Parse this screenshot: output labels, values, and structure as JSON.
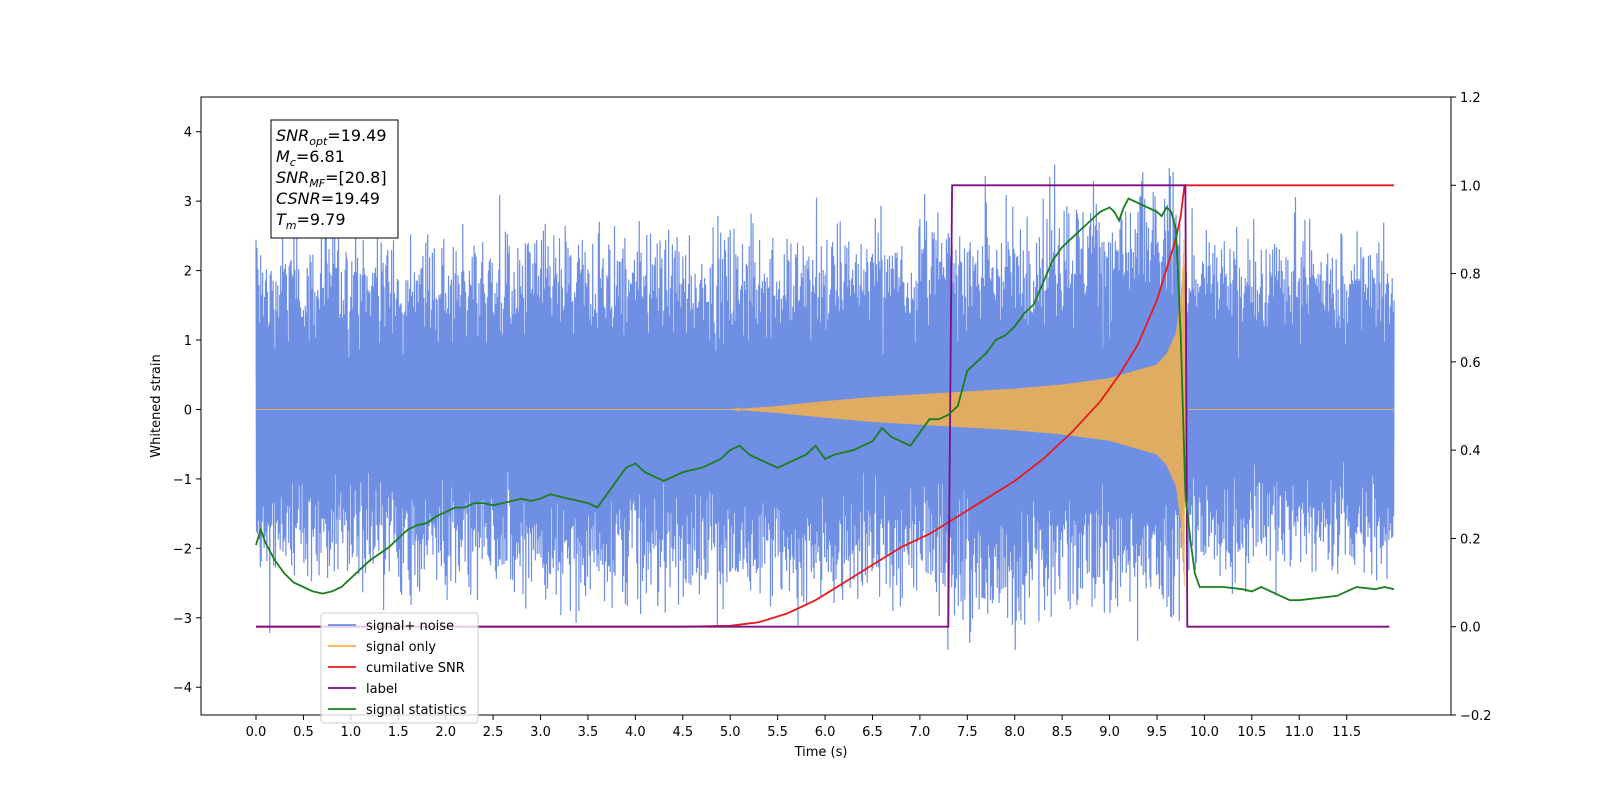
{
  "chart_data": {
    "type": "line",
    "xlabel": "Time (s)",
    "ylabel": "Whitened strain",
    "xlim": [
      -0.58,
      12.6
    ],
    "ylim": [
      -4.4,
      4.5
    ],
    "ylim_right": [
      -0.2,
      1.2
    ],
    "x_ticks": [
      "0.0",
      "0.5",
      "1.0",
      "1.5",
      "2.0",
      "2.5",
      "3.0",
      "3.5",
      "4.0",
      "4.5",
      "5.0",
      "5.5",
      "6.0",
      "6.5",
      "7.0",
      "7.5",
      "8.0",
      "8.5",
      "9.0",
      "9.5",
      "10.0",
      "10.5",
      "11.0",
      "11.5"
    ],
    "y_ticks": [
      "4",
      "3",
      "2",
      "1",
      "0",
      "−1",
      "−2",
      "−3",
      "−4"
    ],
    "y_right_ticks": [
      "1.2",
      "1.0",
      "0.8",
      "0.6",
      "0.4",
      "0.2",
      "0.0",
      "−0.2"
    ],
    "grid": false,
    "legend_position": "lower-left",
    "annotation": {
      "lines": [
        {
          "main": "SNR",
          "sub": "opt",
          "value": "=19.49"
        },
        {
          "main": "M",
          "sub": "c",
          "value": "=6.81"
        },
        {
          "main": "SNR",
          "sub": "MF",
          "value": "=[20.8]"
        },
        {
          "main": "CSNR",
          "sub": "",
          "value": "=19.49"
        },
        {
          "main": "T",
          "sub": "m",
          "value": "=9.79"
        }
      ]
    },
    "series": [
      {
        "name": "signal+ noise",
        "color": "#6f8fe5",
        "axis": "left",
        "description_envelope": {
          "x": [
            0.0,
            1.0,
            2.0,
            3.0,
            4.0,
            5.0,
            6.0,
            7.0,
            7.5,
            8.0,
            8.5,
            9.0,
            9.5,
            9.7,
            9.8,
            10.5,
            11.0,
            12.0
          ],
          "upper": [
            2.4,
            2.5,
            2.4,
            2.5,
            2.6,
            2.5,
            2.6,
            2.7,
            2.8,
            2.9,
            3.0,
            3.1,
            3.3,
            3.4,
            2.6,
            2.5,
            2.5,
            2.4
          ],
          "lower": [
            -2.4,
            -2.5,
            -2.6,
            -2.7,
            -2.8,
            -2.8,
            -2.8,
            -2.8,
            -3.1,
            -3.2,
            -3.0,
            -2.9,
            -2.8,
            -3.1,
            -2.5,
            -2.4,
            -2.4,
            -2.4
          ]
        }
      },
      {
        "name": "signal only",
        "color": "#f5b24a",
        "axis": "left",
        "description_envelope": {
          "x": [
            0.0,
            5.0,
            5.5,
            6.0,
            6.5,
            7.0,
            7.5,
            8.0,
            8.5,
            9.0,
            9.5,
            9.6,
            9.7,
            9.75,
            9.79,
            9.8,
            12.0
          ],
          "amplitude": [
            0.0,
            0.0,
            0.05,
            0.12,
            0.18,
            0.22,
            0.26,
            0.3,
            0.36,
            0.45,
            0.65,
            0.8,
            1.1,
            1.6,
            2.6,
            0.0,
            0.0
          ]
        }
      },
      {
        "name": "cumilative SNR",
        "color": "#e8191a",
        "axis": "right",
        "x": [
          0.0,
          4.5,
          5.0,
          5.3,
          5.6,
          5.9,
          6.2,
          6.5,
          6.8,
          7.1,
          7.4,
          7.7,
          8.0,
          8.3,
          8.6,
          8.9,
          9.1,
          9.3,
          9.5,
          9.6,
          9.7,
          9.75,
          9.79,
          9.8,
          12.0
        ],
        "values": [
          0.0,
          0.0,
          0.002,
          0.01,
          0.03,
          0.06,
          0.1,
          0.14,
          0.18,
          0.21,
          0.25,
          0.29,
          0.33,
          0.38,
          0.44,
          0.51,
          0.57,
          0.64,
          0.74,
          0.81,
          0.88,
          0.93,
          1.0,
          1.0,
          1.0
        ]
      },
      {
        "name": "label",
        "color": "#7b0f84",
        "axis": "right",
        "x": [
          0.0,
          7.3,
          7.34,
          9.8,
          9.82,
          11.95
        ],
        "values": [
          0.0,
          0.0,
          1.0,
          1.0,
          0.0,
          0.0
        ]
      },
      {
        "name": "signal statistics",
        "color": "#1a7f1a",
        "axis": "right",
        "x": [
          0.0,
          0.05,
          0.1,
          0.2,
          0.3,
          0.4,
          0.5,
          0.6,
          0.7,
          0.8,
          0.9,
          1.0,
          1.1,
          1.2,
          1.3,
          1.4,
          1.5,
          1.6,
          1.7,
          1.8,
          1.9,
          2.0,
          2.1,
          2.2,
          2.3,
          2.4,
          2.5,
          2.6,
          2.7,
          2.8,
          2.9,
          3.0,
          3.1,
          3.2,
          3.3,
          3.4,
          3.5,
          3.6,
          3.7,
          3.8,
          3.9,
          4.0,
          4.1,
          4.2,
          4.3,
          4.4,
          4.5,
          4.6,
          4.7,
          4.8,
          4.9,
          5.0,
          5.1,
          5.2,
          5.3,
          5.4,
          5.5,
          5.6,
          5.7,
          5.8,
          5.9,
          6.0,
          6.1,
          6.2,
          6.3,
          6.4,
          6.5,
          6.6,
          6.7,
          6.8,
          6.9,
          7.0,
          7.1,
          7.2,
          7.3,
          7.4,
          7.5,
          7.6,
          7.7,
          7.8,
          7.9,
          8.0,
          8.1,
          8.2,
          8.3,
          8.4,
          8.5,
          8.6,
          8.7,
          8.8,
          8.9,
          9.0,
          9.05,
          9.1,
          9.15,
          9.2,
          9.3,
          9.4,
          9.5,
          9.55,
          9.6,
          9.65,
          9.7,
          9.75,
          9.8,
          9.85,
          9.9,
          9.95,
          10.0,
          10.2,
          10.4,
          10.5,
          10.6,
          10.7,
          10.8,
          10.9,
          11.0,
          11.2,
          11.4,
          11.5,
          11.6,
          11.8,
          11.9,
          12.0
        ],
        "values": [
          0.185,
          0.22,
          0.19,
          0.15,
          0.12,
          0.1,
          0.09,
          0.08,
          0.075,
          0.08,
          0.09,
          0.11,
          0.13,
          0.15,
          0.165,
          0.18,
          0.2,
          0.22,
          0.23,
          0.235,
          0.25,
          0.26,
          0.27,
          0.27,
          0.28,
          0.28,
          0.275,
          0.28,
          0.285,
          0.29,
          0.285,
          0.29,
          0.3,
          0.295,
          0.29,
          0.285,
          0.28,
          0.27,
          0.3,
          0.33,
          0.36,
          0.37,
          0.35,
          0.34,
          0.33,
          0.34,
          0.35,
          0.355,
          0.36,
          0.37,
          0.38,
          0.4,
          0.41,
          0.39,
          0.38,
          0.37,
          0.36,
          0.37,
          0.38,
          0.39,
          0.41,
          0.38,
          0.39,
          0.395,
          0.4,
          0.41,
          0.42,
          0.45,
          0.43,
          0.42,
          0.41,
          0.44,
          0.47,
          0.47,
          0.48,
          0.5,
          0.58,
          0.6,
          0.62,
          0.65,
          0.66,
          0.68,
          0.71,
          0.73,
          0.78,
          0.83,
          0.86,
          0.88,
          0.9,
          0.92,
          0.94,
          0.95,
          0.94,
          0.92,
          0.95,
          0.97,
          0.96,
          0.95,
          0.94,
          0.93,
          0.95,
          0.94,
          0.9,
          0.66,
          0.3,
          0.2,
          0.12,
          0.09,
          0.09,
          0.09,
          0.085,
          0.08,
          0.09,
          0.08,
          0.07,
          0.06,
          0.06,
          0.065,
          0.07,
          0.08,
          0.09,
          0.085,
          0.09,
          0.085
        ]
      }
    ]
  }
}
